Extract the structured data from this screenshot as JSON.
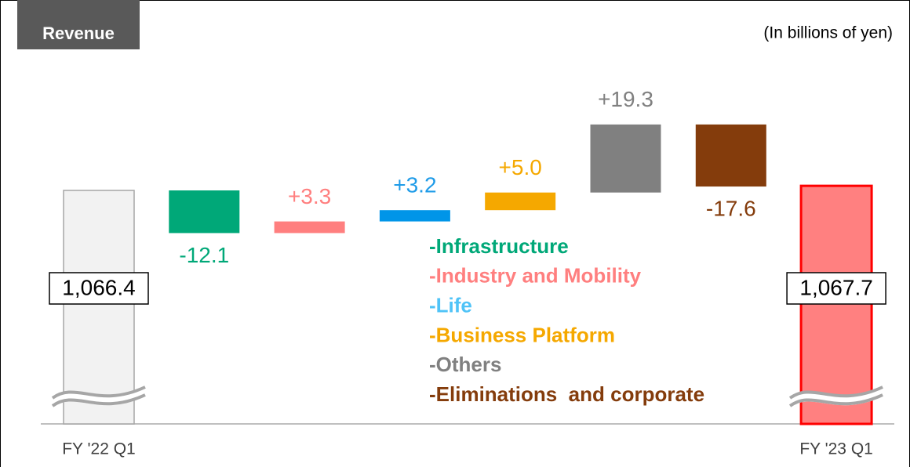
{
  "chart_data": {
    "type": "waterfall",
    "title": "Revenue",
    "subtitle": "(In billions of yen)",
    "categories": [
      "FY '22 Q1",
      null,
      null,
      null,
      null,
      null,
      null,
      "FY '23 Q1"
    ],
    "values": [
      1066.4,
      -12.1,
      3.3,
      3.2,
      5.0,
      19.3,
      -17.6,
      1067.7
    ],
    "value_labels": [
      "1,066.4",
      "-12.1",
      "+3.3",
      "+3.2",
      "+5.0",
      "+19.3",
      "-17.6",
      "1,067.7"
    ],
    "colors": [
      "#f2f2f2",
      "#00a878",
      "#ff7f7f",
      "#0095e8",
      "#f5a800",
      "#808080",
      "#843c0c",
      "#ff8080"
    ],
    "label_colors": [
      "#000000",
      "#00a878",
      "#ff7f7f",
      "#1e9be8",
      "#f5a800",
      "#808080",
      "#843c0c",
      "#000000"
    ],
    "legend": [
      {
        "name": "-Infrastructure",
        "color": "#00a878"
      },
      {
        "name": "-Industry and Mobility",
        "color": "#ff7f7f"
      },
      {
        "name": "-Life",
        "color": "#4fc3f7"
      },
      {
        "name": "-Business Platform",
        "color": "#f5a800"
      },
      {
        "name": "-Others",
        "color": "#808080"
      },
      {
        "name": "-Eliminations  and corporate",
        "color": "#843c0c"
      }
    ]
  }
}
